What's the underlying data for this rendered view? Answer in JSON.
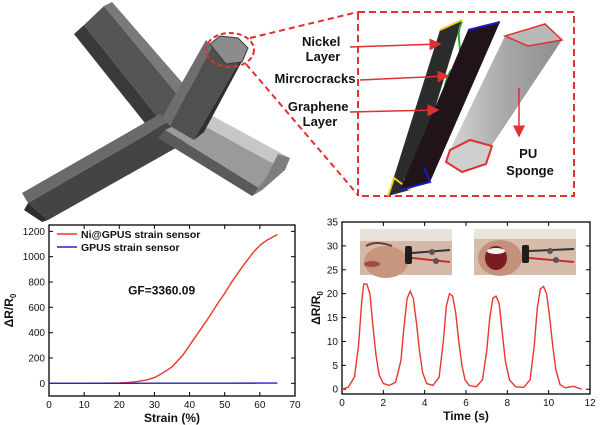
{
  "schematic": {
    "labels": {
      "nickel": "Nickel\nLayer",
      "microcracks": "Mircrocracks",
      "graphene": "Graphene\nLayer",
      "pu": "PU\nSponge"
    },
    "colors": {
      "strut": "#4d4d4d",
      "strut_light": "#8a8a8a",
      "dashed": "#e03030",
      "arrow": "#e03030",
      "nickel_line": "#2fa82f",
      "graphene_edge": "#1a1acc",
      "pu_outline": "#e03030"
    }
  },
  "chart_data": [
    {
      "type": "line",
      "xlabel": "Strain (%)",
      "ylabel": "ΔR/R",
      "ylabel_sub": "0",
      "xlim": [
        0,
        70
      ],
      "ylim": [
        -100,
        1250
      ],
      "xticks": [
        0,
        10,
        20,
        30,
        40,
        50,
        60,
        70
      ],
      "yticks": [
        0,
        200,
        400,
        600,
        800,
        1000,
        1200
      ],
      "annotation": "GF=3360.09",
      "legend_position": "top-left",
      "series": [
        {
          "name": "Ni@GPUS strain sensor",
          "color": "#e8372c",
          "x": [
            0,
            5,
            10,
            15,
            20,
            22,
            25,
            28,
            30,
            32,
            35,
            38,
            40,
            42,
            45,
            48,
            50,
            52,
            55,
            58,
            60,
            62,
            65
          ],
          "y": [
            0,
            0,
            0,
            1,
            3,
            6,
            14,
            28,
            45,
            75,
            130,
            220,
            300,
            380,
            500,
            630,
            710,
            800,
            920,
            1030,
            1090,
            1130,
            1175
          ]
        },
        {
          "name": "GPUS strain sensor",
          "color": "#2323c8",
          "x": [
            0,
            10,
            20,
            30,
            40,
            50,
            60,
            65
          ],
          "y": [
            0,
            0,
            0,
            1,
            1,
            1,
            2,
            2
          ]
        }
      ]
    },
    {
      "type": "line",
      "xlabel": "Time (s)",
      "ylabel": "ΔR/R",
      "ylabel_sub": "0",
      "xlim": [
        0,
        12
      ],
      "ylim": [
        -1,
        35
      ],
      "xticks": [
        0,
        2,
        4,
        6,
        8,
        10,
        12
      ],
      "yticks": [
        0,
        5,
        10,
        15,
        20,
        25,
        30,
        35
      ],
      "series": [
        {
          "color": "#e8372c",
          "x": [
            0,
            0.3,
            0.6,
            0.8,
            0.95,
            1.05,
            1.2,
            1.35,
            1.5,
            1.65,
            1.8,
            2.0,
            2.3,
            2.6,
            2.85,
            3.0,
            3.15,
            3.3,
            3.45,
            3.6,
            3.75,
            3.9,
            4.1,
            4.4,
            4.7,
            4.9,
            5.05,
            5.2,
            5.35,
            5.5,
            5.65,
            5.8,
            5.95,
            6.15,
            6.5,
            6.8,
            7.0,
            7.15,
            7.3,
            7.45,
            7.6,
            7.75,
            7.9,
            8.1,
            8.4,
            8.8,
            9.1,
            9.3,
            9.45,
            9.6,
            9.75,
            9.9,
            10.05,
            10.2,
            10.35,
            10.55,
            10.8,
            11.2,
            11.6
          ],
          "y": [
            0,
            0.4,
            2.5,
            9,
            18,
            22,
            22,
            20,
            13,
            7,
            3,
            1.2,
            0.8,
            1.5,
            6,
            13,
            19,
            20.5,
            19,
            14,
            8,
            3.5,
            1.2,
            0.8,
            2.5,
            10,
            17.5,
            20,
            19.5,
            16,
            10,
            5,
            2,
            0.8,
            0.5,
            2,
            8,
            15,
            19,
            19.5,
            18,
            12,
            6,
            2,
            0.5,
            0.4,
            2,
            9,
            17,
            21,
            21.5,
            20,
            15,
            9,
            4,
            1,
            0.3,
            0.6,
            0
          ]
        }
      ]
    }
  ]
}
